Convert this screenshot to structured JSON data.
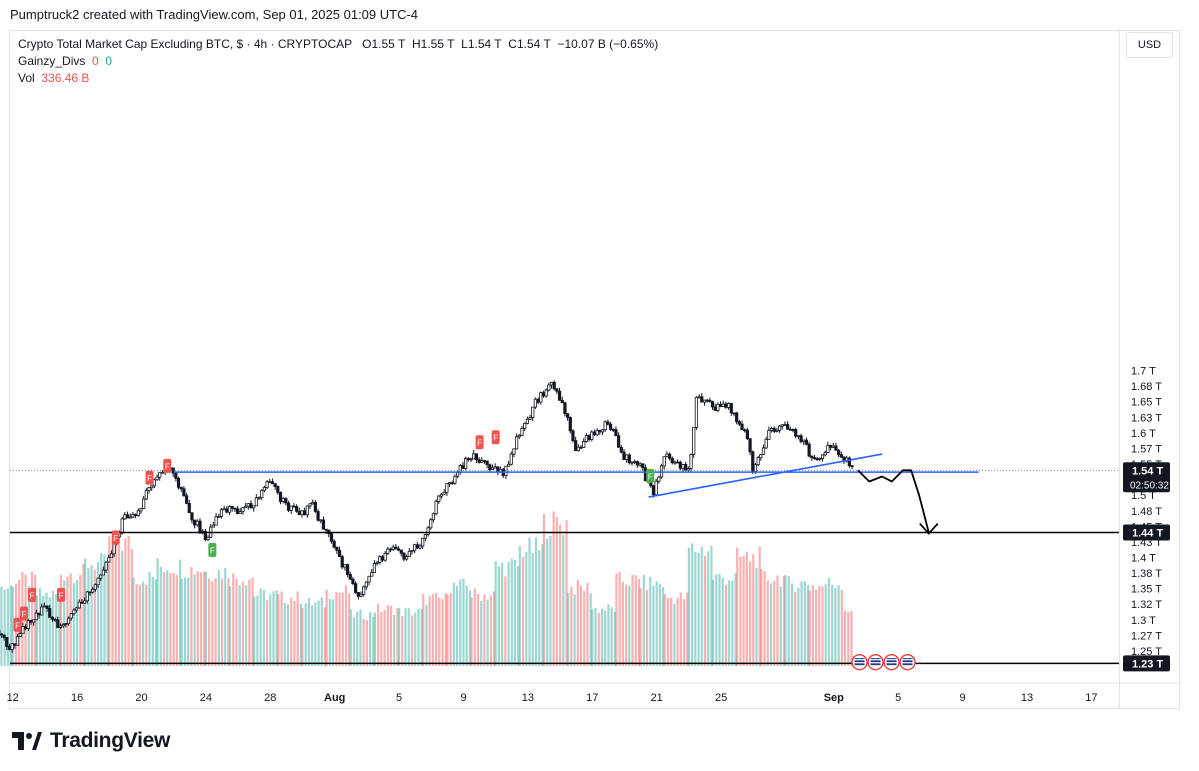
{
  "header": {
    "attribution": "Pumptruck2 created with TradingView.com, Sep 01, 2025 01:09 UTC-4"
  },
  "legend": {
    "symbol_line": "Crypto Total Market Cap Excluding BTC, $ · 4h · CRYPTOCAP",
    "o_label": "O",
    "o_value": "1.55 T",
    "h_label": "H",
    "h_value": "1.55 T",
    "l_label": "L",
    "l_value": "1.54 T",
    "c_label": "C",
    "c_value": "1.54 T",
    "change": "−10.07 B (−0.65%)",
    "indicator_name": "Gainzy_Divs",
    "indicator_v1": "0",
    "indicator_v2": "0",
    "vol_label": "Vol",
    "vol_value": "336.46 B"
  },
  "currency": "USD",
  "brand": "TradingView",
  "colors": {
    "up": "#26a69a",
    "down": "#ef5350",
    "trendline": "#2962ff",
    "candle_mono": "#131722"
  },
  "chart_data": {
    "type": "candlestick",
    "title": "Crypto Total Market Cap Excluding BTC",
    "interval": "4h",
    "y_unit": "T",
    "ylim": [
      1.215,
      1.735
    ],
    "y_ticks": [
      "1.7 T",
      "1.68 T",
      "1.65 T",
      "1.63 T",
      "1.6 T",
      "1.57 T",
      "1.55 T",
      "1.5 T",
      "1.48 T",
      "1.45 T",
      "1.43 T",
      "1.4 T",
      "1.38 T",
      "1.35 T",
      "1.32 T",
      "1.3 T",
      "1.27 T",
      "1.25 T"
    ],
    "y_tick_values": [
      1.7,
      1.675,
      1.65,
      1.625,
      1.6,
      1.575,
      1.55,
      1.5,
      1.475,
      1.45,
      1.425,
      1.4,
      1.375,
      1.35,
      1.325,
      1.3,
      1.275,
      1.25
    ],
    "x_ticks": [
      "12",
      "16",
      "20",
      "24",
      "28",
      "Aug",
      "5",
      "9",
      "13",
      "17",
      "21",
      "25",
      "Sep",
      "5",
      "9",
      "13",
      "17"
    ],
    "x_tick_days": [
      -8,
      -4,
      0,
      4,
      8,
      12,
      16,
      20,
      24,
      28,
      32,
      36,
      43,
      47,
      51,
      55,
      59
    ],
    "x_origin_date": "2025-07-20",
    "price_labels": [
      {
        "text": "1.54 T",
        "sub": "02:50:32",
        "value": 1.54,
        "style": "dark"
      },
      {
        "text": "1.44 T",
        "value": 1.44,
        "style": "dark"
      },
      {
        "text": "1.23 T",
        "value": 1.23,
        "style": "dark"
      }
    ],
    "path_points": [
      [
        -9.2,
        1.285
      ],
      [
        -8.2,
        1.255
      ],
      [
        -7.0,
        1.295
      ],
      [
        -6.0,
        1.32
      ],
      [
        -5.0,
        1.285
      ],
      [
        -4.0,
        1.32
      ],
      [
        -3.0,
        1.355
      ],
      [
        -2.0,
        1.4
      ],
      [
        -1.0,
        1.47
      ],
      [
        -0.3,
        1.47
      ],
      [
        0.5,
        1.515
      ],
      [
        1.5,
        1.548
      ],
      [
        2.0,
        1.54
      ],
      [
        3.0,
        1.47
      ],
      [
        4.0,
        1.43
      ],
      [
        5.0,
        1.48
      ],
      [
        6.0,
        1.47
      ],
      [
        7.0,
        1.49
      ],
      [
        8.0,
        1.525
      ],
      [
        9.0,
        1.48
      ],
      [
        10.0,
        1.47
      ],
      [
        10.5,
        1.49
      ],
      [
        11.5,
        1.44
      ],
      [
        12.5,
        1.39
      ],
      [
        13.5,
        1.34
      ],
      [
        14.5,
        1.385
      ],
      [
        15.5,
        1.42
      ],
      [
        16.5,
        1.4
      ],
      [
        17.5,
        1.43
      ],
      [
        18.5,
        1.5
      ],
      [
        19.5,
        1.53
      ],
      [
        20.5,
        1.565
      ],
      [
        21.5,
        1.545
      ],
      [
        22.5,
        1.535
      ],
      [
        23.5,
        1.6
      ],
      [
        24.5,
        1.65
      ],
      [
        25.5,
        1.68
      ],
      [
        26.5,
        1.62
      ],
      [
        27.0,
        1.575
      ],
      [
        28.0,
        1.6
      ],
      [
        29.0,
        1.615
      ],
      [
        30.0,
        1.56
      ],
      [
        31.0,
        1.545
      ],
      [
        31.8,
        1.505
      ],
      [
        32.5,
        1.565
      ],
      [
        33.5,
        1.545
      ],
      [
        34.0,
        1.54
      ],
      [
        34.5,
        1.66
      ],
      [
        35.5,
        1.64
      ],
      [
        36.5,
        1.645
      ],
      [
        37.5,
        1.6
      ],
      [
        38.0,
        1.54
      ],
      [
        39.0,
        1.6
      ],
      [
        40.0,
        1.615
      ],
      [
        41.0,
        1.59
      ],
      [
        41.5,
        1.565
      ],
      [
        42.0,
        1.56
      ],
      [
        42.7,
        1.58
      ],
      [
        43.5,
        1.56
      ],
      [
        44.2,
        1.545
      ]
    ],
    "volume_bars": [
      {
        "x": -9.3,
        "v": 0.55,
        "up": true
      },
      {
        "x": -8.0,
        "v": 0.6,
        "up": false
      },
      {
        "x": -6.5,
        "v": 0.5,
        "up": true
      },
      {
        "x": -5.0,
        "v": 0.65,
        "up": false
      },
      {
        "x": -3.5,
        "v": 0.72,
        "up": true
      },
      {
        "x": -2.0,
        "v": 0.86,
        "up": false
      },
      {
        "x": -0.5,
        "v": 0.62,
        "up": true
      },
      {
        "x": 1.0,
        "v": 0.7,
        "up": true
      },
      {
        "x": 2.5,
        "v": 0.68,
        "up": false
      },
      {
        "x": 4.0,
        "v": 0.66,
        "up": true
      },
      {
        "x": 5.5,
        "v": 0.62,
        "up": false
      },
      {
        "x": 7.0,
        "v": 0.5,
        "up": true
      },
      {
        "x": 8.5,
        "v": 0.48,
        "up": false
      },
      {
        "x": 10.0,
        "v": 0.44,
        "up": true
      },
      {
        "x": 11.5,
        "v": 0.52,
        "up": false
      },
      {
        "x": 13.0,
        "v": 0.36,
        "up": true
      },
      {
        "x": 14.5,
        "v": 0.4,
        "up": false
      },
      {
        "x": 16.0,
        "v": 0.38,
        "up": true
      },
      {
        "x": 17.5,
        "v": 0.47,
        "up": false
      },
      {
        "x": 19.0,
        "v": 0.56,
        "up": true
      },
      {
        "x": 20.5,
        "v": 0.5,
        "up": false
      },
      {
        "x": 22.0,
        "v": 0.7,
        "up": true
      },
      {
        "x": 23.5,
        "v": 0.82,
        "up": true
      },
      {
        "x": 25.0,
        "v": 1.0,
        "up": false
      },
      {
        "x": 26.5,
        "v": 0.55,
        "up": false
      },
      {
        "x": 28.0,
        "v": 0.4,
        "up": true
      },
      {
        "x": 29.5,
        "v": 0.6,
        "up": false
      },
      {
        "x": 31.0,
        "v": 0.58,
        "up": true
      },
      {
        "x": 32.5,
        "v": 0.48,
        "up": false
      },
      {
        "x": 34.0,
        "v": 0.82,
        "up": true
      },
      {
        "x": 35.5,
        "v": 0.62,
        "up": true
      },
      {
        "x": 37.0,
        "v": 0.76,
        "up": false
      },
      {
        "x": 38.5,
        "v": 0.62,
        "up": false
      },
      {
        "x": 40.0,
        "v": 0.58,
        "up": true
      },
      {
        "x": 41.5,
        "v": 0.56,
        "up": false
      },
      {
        "x": 42.5,
        "v": 0.58,
        "up": true
      },
      {
        "x": 43.7,
        "v": 0.4,
        "up": false
      }
    ],
    "horizontal_lines": [
      {
        "value": 1.537,
        "x_from": 2,
        "x_to": 52,
        "color": "#2962ff"
      },
      {
        "value": 1.44,
        "x_from": -10,
        "x_to": 66,
        "color": "#000000"
      },
      {
        "value": 1.23,
        "x_from": -10,
        "x_to": 66,
        "color": "#000000"
      }
    ],
    "trendline": {
      "from": [
        31.5,
        1.497
      ],
      "to": [
        46,
        1.566
      ],
      "color": "#2962ff"
    },
    "projection": [
      [
        44.5,
        1.54
      ],
      [
        45.2,
        1.522
      ],
      [
        46.0,
        1.53
      ],
      [
        46.6,
        1.522
      ],
      [
        47.3,
        1.54
      ],
      [
        47.8,
        1.54
      ],
      [
        48.3,
        1.5
      ],
      [
        48.9,
        1.44
      ]
    ],
    "signal_markers": [
      {
        "x": -7.7,
        "y": 1.292,
        "t": "F",
        "up": false
      },
      {
        "x": -7.3,
        "y": 1.31,
        "t": "F",
        "up": false
      },
      {
        "x": -6.8,
        "y": 1.34,
        "t": "F",
        "up": false
      },
      {
        "x": -5.0,
        "y": 1.34,
        "t": "F",
        "up": false
      },
      {
        "x": -1.6,
        "y": 1.432,
        "t": "F",
        "up": false
      },
      {
        "x": 0.5,
        "y": 1.528,
        "t": "F",
        "up": false
      },
      {
        "x": 1.6,
        "y": 1.547,
        "t": "F",
        "up": false
      },
      {
        "x": 4.4,
        "y": 1.412,
        "t": "F",
        "up": true
      },
      {
        "x": 21.0,
        "y": 1.585,
        "t": "F",
        "up": false
      },
      {
        "x": 22.0,
        "y": 1.593,
        "t": "F",
        "up": false
      },
      {
        "x": 31.6,
        "y": 1.531,
        "t": "F",
        "up": true
      }
    ],
    "event_badges": 4,
    "grid": false
  }
}
